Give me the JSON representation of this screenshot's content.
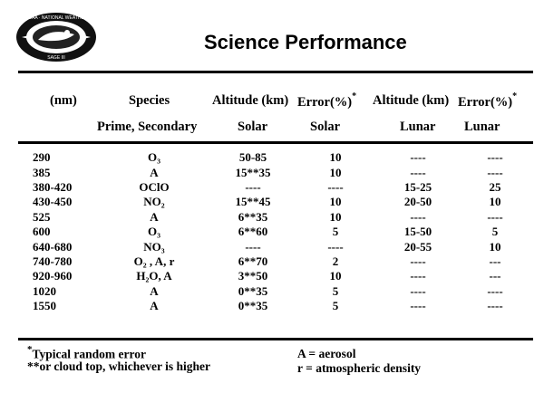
{
  "logo": {
    "ring_top": "NOAA · NATIONAL WEATHER",
    "ring_bottom": "SAGE III"
  },
  "title": "Science Performance",
  "headers": {
    "wavelength": "(nm)",
    "species": "Species",
    "species_sub": "Prime, Secondary",
    "alt_solar": "Altitude (km)",
    "alt_solar_sub": "Solar",
    "err_solar": "Error(%)",
    "err_solar_mark": "*",
    "err_solar_sub": "Solar",
    "alt_lunar": "Altitude (km)",
    "alt_lunar_sub": "Lunar",
    "err_lunar": "Error(%)",
    "err_lunar_mark": "*",
    "err_lunar_sub": "Lunar"
  },
  "rows": [
    {
      "wavelength": "290",
      "species": "O₃",
      "alt_solar": "50-85",
      "err_solar": "10",
      "alt_lunar": "----",
      "err_lunar": "----"
    },
    {
      "wavelength": "385",
      "species": "A",
      "alt_solar": "15**35",
      "err_solar": "10",
      "alt_lunar": "----",
      "err_lunar": "----"
    },
    {
      "wavelength": "380-420",
      "species": "OClO",
      "alt_solar": "----",
      "err_solar": "----",
      "alt_lunar": "15-25",
      "err_lunar": "25"
    },
    {
      "wavelength": "430-450",
      "species": "NO₂",
      "alt_solar": "15**45",
      "err_solar": "10",
      "alt_lunar": "20-50",
      "err_lunar": "10"
    },
    {
      "wavelength": "525",
      "species": "A",
      "alt_solar": "6**35",
      "err_solar": "10",
      "alt_lunar": "----",
      "err_lunar": "----"
    },
    {
      "wavelength": "600",
      "species": "O₃",
      "alt_solar": "6**60",
      "err_solar": "5",
      "alt_lunar": "15-50",
      "err_lunar": "5"
    },
    {
      "wavelength": "640-680",
      "species": "NO₃",
      "alt_solar": "----",
      "err_solar": "----",
      "alt_lunar": "20-55",
      "err_lunar": "10"
    },
    {
      "wavelength": "740-780",
      "species": "O₂ , A, r",
      "alt_solar": "6**70",
      "err_solar": "2",
      "alt_lunar": "----",
      "err_lunar": "---"
    },
    {
      "wavelength": "920-960",
      "species": "H₂O, A",
      "alt_solar": "3**50",
      "err_solar": "10",
      "alt_lunar": "----",
      "err_lunar": "---"
    },
    {
      "wavelength": "1020",
      "species": "A",
      "alt_solar": "0**35",
      "err_solar": "5",
      "alt_lunar": "----",
      "err_lunar": "----"
    },
    {
      "wavelength": "1550",
      "species": "A",
      "alt_solar": "0**35",
      "err_solar": "5",
      "alt_lunar": "----",
      "err_lunar": "----"
    }
  ],
  "footnotes": {
    "star_mark": "*",
    "star_text": "Typical random error",
    "double_star": "**or cloud top, whichever is higher",
    "aerosol": "A = aerosol",
    "density": "r = atmospheric density"
  }
}
